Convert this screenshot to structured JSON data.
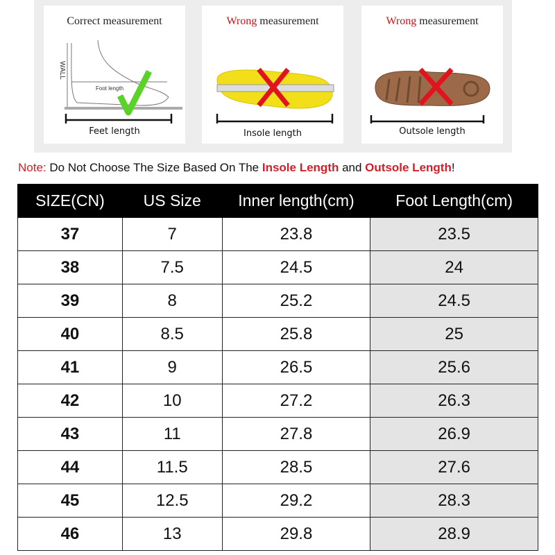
{
  "panels": [
    {
      "title_prefix": "",
      "title_rest": "Correct measurement",
      "caption": "Feet length",
      "wall_label": "WALL",
      "inner_label": "Foot length",
      "mark": "check-icon"
    },
    {
      "title_prefix": "Wrong",
      "title_rest": " measurement",
      "caption": "Insole length",
      "mark": "cross-icon"
    },
    {
      "title_prefix": "Wrong",
      "title_rest": " measurement",
      "caption": "Outsole length",
      "mark": "cross-icon"
    }
  ],
  "note": {
    "label": "Note:",
    "text1": " Do Not Choose The Size Based On The ",
    "insole": "Insole Length",
    "and": " and ",
    "outsole": "Outsole Length",
    "end": "!"
  },
  "table": {
    "headers": [
      "SIZE(CN)",
      "US Size",
      "Inner length(cm)",
      "Foot Length(cm)"
    ],
    "rows": [
      [
        "37",
        "7",
        "23.8",
        "23.5"
      ],
      [
        "38",
        "7.5",
        "24.5",
        "24"
      ],
      [
        "39",
        "8",
        "25.2",
        "24.5"
      ],
      [
        "40",
        "8.5",
        "25.8",
        "25"
      ],
      [
        "41",
        "9",
        "26.5",
        "25.6"
      ],
      [
        "42",
        "10",
        "27.2",
        "26.3"
      ],
      [
        "43",
        "11",
        "27.8",
        "26.9"
      ],
      [
        "44",
        "11.5",
        "28.5",
        "27.6"
      ],
      [
        "45",
        "12.5",
        "29.2",
        "28.3"
      ],
      [
        "46",
        "13",
        "29.8",
        "28.9"
      ]
    ]
  },
  "colors": {
    "accent_red": "#d21e28",
    "check_green": "#5ad22a",
    "header_bg": "#000000",
    "foot_col_bg": "#e4e4e4"
  }
}
